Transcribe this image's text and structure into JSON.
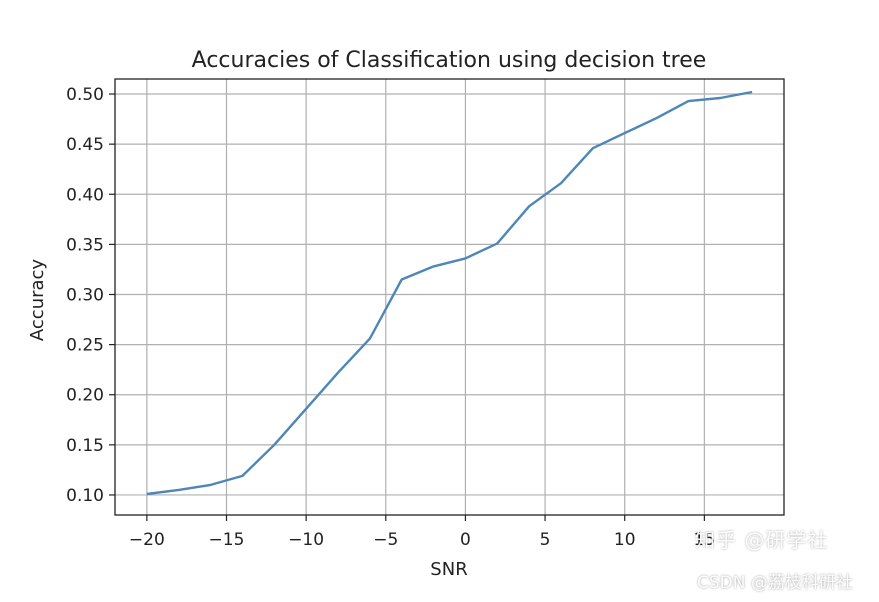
{
  "chart_data": {
    "type": "line",
    "title": "Accuracies of Classification using decision tree",
    "xlabel": "SNR",
    "ylabel": "Accuracy",
    "xlim": [
      -22,
      20
    ],
    "ylim": [
      0.08,
      0.515
    ],
    "grid": true,
    "x_ticks": [
      -20,
      -15,
      -10,
      -5,
      0,
      5,
      10,
      15
    ],
    "x_tick_labels": [
      "−20",
      "−15",
      "−10",
      "−5",
      "0",
      "5",
      "10",
      "15"
    ],
    "y_ticks": [
      0.1,
      0.15,
      0.2,
      0.25,
      0.3,
      0.35,
      0.4,
      0.45,
      0.5
    ],
    "y_tick_labels": [
      "0.10",
      "0.15",
      "0.20",
      "0.25",
      "0.30",
      "0.35",
      "0.40",
      "0.45",
      "0.50"
    ],
    "series": [
      {
        "color": "#4f86b8",
        "x": [
          -20,
          -18,
          -16,
          -14,
          -12,
          -10,
          -8,
          -6,
          -4,
          -2,
          0,
          2,
          4,
          6,
          8,
          10,
          12,
          14,
          16,
          18
        ],
        "y": [
          0.101,
          0.105,
          0.11,
          0.119,
          0.15,
          0.186,
          0.222,
          0.256,
          0.315,
          0.328,
          0.336,
          0.351,
          0.388,
          0.411,
          0.446,
          0.461,
          0.476,
          0.493,
          0.496,
          0.502
        ]
      }
    ]
  },
  "watermarks": {
    "line1": "知乎 @研学社",
    "line2": "CSDN @荔枝科研社"
  }
}
